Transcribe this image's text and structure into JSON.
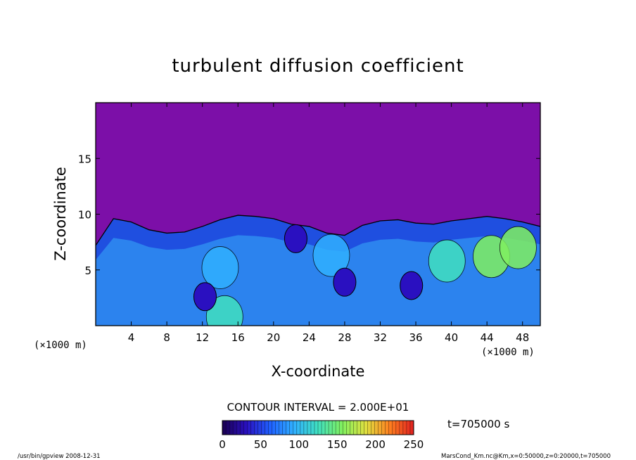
{
  "chart_data": {
    "type": "heatmap",
    "title": "turbulent diffusion coefficient",
    "xlabel": "X-coordinate",
    "ylabel": "Z-coordinate",
    "x_unit": "(×1000 m)",
    "y_unit": "(×1000 m)",
    "xlim": [
      0,
      50
    ],
    "ylim": [
      0,
      20
    ],
    "x_ticks": [
      4,
      8,
      12,
      16,
      20,
      24,
      28,
      32,
      36,
      40,
      44,
      48
    ],
    "y_ticks": [
      5,
      10,
      15
    ],
    "contour_interval": "CONTOUR INTERVAL = 2.000E+01",
    "colorbar": {
      "min": 0,
      "max": 250,
      "ticks": [
        0,
        50,
        100,
        150,
        200,
        250
      ],
      "colors": [
        "#1a0050",
        "#2a10c0",
        "#2060ff",
        "#30b0ff",
        "#40e0c0",
        "#80f060",
        "#e0e040",
        "#ff8020",
        "#e02020"
      ]
    },
    "background_color": "#7c0fa8",
    "boundary_layer": {
      "x": [
        0,
        2,
        4,
        6,
        8,
        10,
        12,
        14,
        16,
        18,
        20,
        22,
        24,
        26,
        28,
        30,
        32,
        34,
        36,
        38,
        40,
        42,
        44,
        46,
        48,
        50
      ],
      "top_z": [
        7.2,
        9.6,
        9.3,
        8.6,
        8.3,
        8.4,
        8.9,
        9.5,
        9.9,
        9.8,
        9.6,
        9.1,
        8.9,
        8.3,
        8.1,
        9.0,
        9.4,
        9.5,
        9.2,
        9.1,
        9.4,
        9.6,
        9.8,
        9.6,
        9.3,
        8.9
      ]
    },
    "weak_pockets": [
      {
        "x": 12.3,
        "z": 2.6,
        "value": 20
      },
      {
        "x": 22.5,
        "z": 7.8,
        "value": 20
      },
      {
        "x": 28.0,
        "z": 3.9,
        "value": 20
      },
      {
        "x": 35.5,
        "z": 3.6,
        "value": 20
      }
    ],
    "strong_patches": [
      {
        "x": 14.0,
        "z": 5.2,
        "value": 100
      },
      {
        "x": 26.5,
        "z": 6.3,
        "value": 90
      },
      {
        "x": 39.5,
        "z": 5.8,
        "value": 110
      },
      {
        "x": 44.5,
        "z": 6.2,
        "value": 160
      },
      {
        "x": 47.5,
        "z": 7.0,
        "value": 150
      },
      {
        "x": 14.5,
        "z": 0.8,
        "value": 130
      }
    ],
    "time_label": "t=705000 s"
  },
  "footer": {
    "left": "/usr/bin/gpview  2008-12-31",
    "right": "MarsCond_Km.nc@Km,x=0:50000,z=0:20000,t=705000"
  }
}
